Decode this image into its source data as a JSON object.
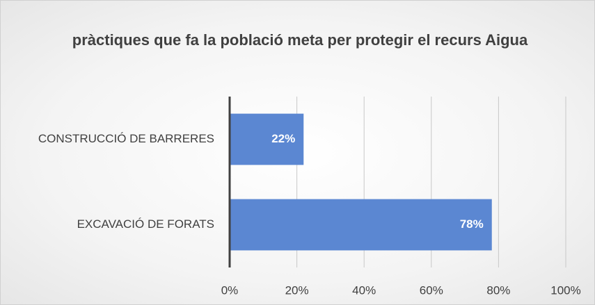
{
  "chart_data": {
    "type": "barh",
    "title": "pràctiques que fa la població meta per protegir el recurs Aigua",
    "categories": [
      "CONSTRUCCIÓ DE BARRERES",
      "EXCAVACIÓ DE FORATS"
    ],
    "values": [
      22,
      78
    ],
    "value_labels": [
      "22%",
      "78%"
    ],
    "color": "#5b87d2",
    "xlim": [
      0,
      100
    ],
    "xticks": [
      {
        "value": 0,
        "label": "0%"
      },
      {
        "value": 20,
        "label": "20%"
      },
      {
        "value": 40,
        "label": "40%"
      },
      {
        "value": 60,
        "label": "60%"
      },
      {
        "value": 80,
        "label": "80%"
      },
      {
        "value": 100,
        "label": "100%"
      }
    ],
    "grid": true
  }
}
